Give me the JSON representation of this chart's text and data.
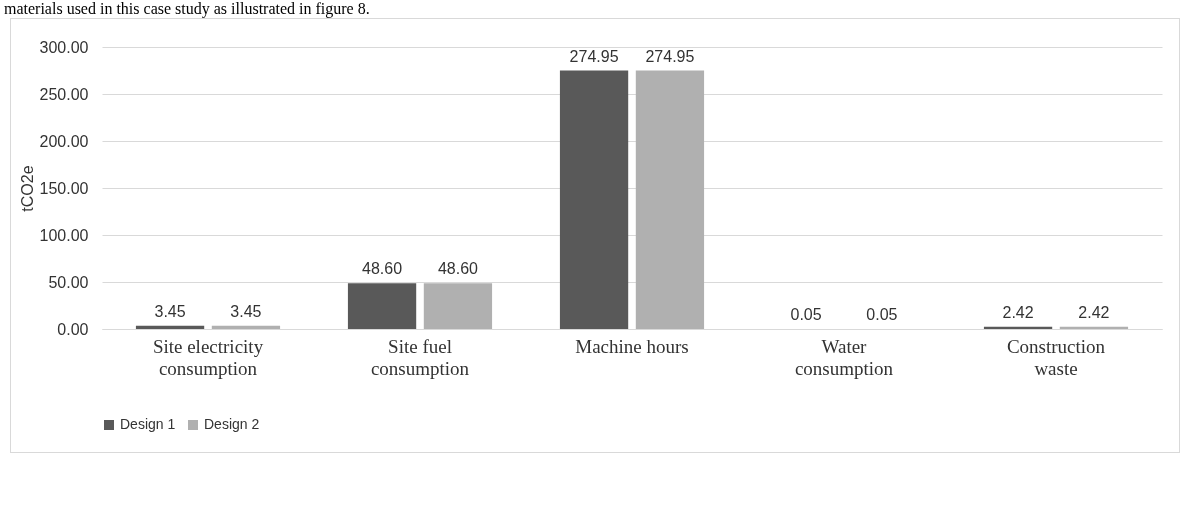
{
  "chart_data": {
    "type": "bar",
    "annotations": [
      "materials used in this case study as illustrated in figure 8."
    ],
    "ylabel": "tCO2e",
    "categories": [
      "Site electricity consumption",
      "Site fuel consumption",
      "Machine hours",
      "Water consumption",
      "Construction waste"
    ],
    "series": [
      {
        "name": "Design 1",
        "color": "#595959",
        "values": [
          3.45,
          48.6,
          274.95,
          0.05,
          2.42
        ],
        "value_labels": [
          "3.45",
          "48.60",
          "274.95",
          "0.05",
          "2.42"
        ]
      },
      {
        "name": "Design 2",
        "color": "#b0b0b0",
        "values": [
          3.45,
          48.6,
          274.95,
          0.05,
          2.42
        ],
        "value_labels": [
          "3.45",
          "48.60",
          "274.95",
          "0.05",
          "2.42"
        ]
      }
    ],
    "ylim": [
      0,
      300
    ],
    "yticks": [
      {
        "value": 0,
        "label": "0.00"
      },
      {
        "value": 50,
        "label": "50.00"
      },
      {
        "value": 100,
        "label": "100.00"
      },
      {
        "value": 150,
        "label": "150.00"
      },
      {
        "value": 200,
        "label": "200.00"
      },
      {
        "value": 250,
        "label": "250.00"
      },
      {
        "value": 300,
        "label": "300.00"
      }
    ],
    "grid": "y",
    "legend": "bottom"
  }
}
